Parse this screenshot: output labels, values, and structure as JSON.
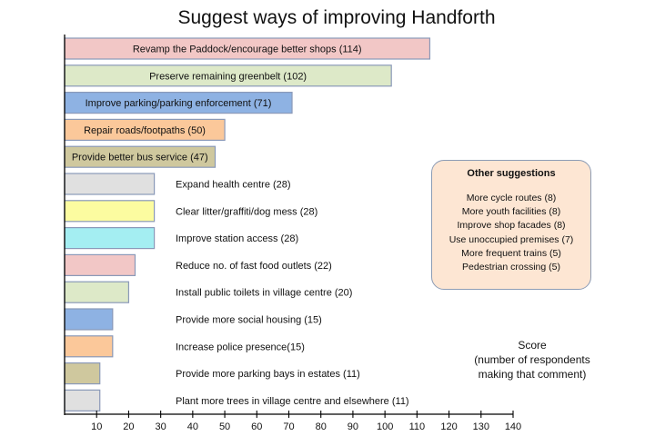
{
  "chart_data": {
    "type": "bar",
    "orientation": "horizontal",
    "title": "Suggest ways of improving Handforth",
    "xlabel": "Score\n(number of respondents\nmaking that comment)",
    "xlim": [
      0,
      140
    ],
    "xticks": [
      10,
      20,
      30,
      40,
      50,
      60,
      70,
      80,
      90,
      100,
      110,
      120,
      130,
      140
    ],
    "grid": false,
    "categories": [
      "Revamp the Paddock/encourage better shops (114)",
      "Preserve remaining greenbelt (102)",
      "Improve parking/parking enforcement (71)",
      "Repair roads/footpaths (50)",
      "Provide better bus service (47)",
      "Expand health centre (28)",
      "Clear litter/graffiti/dog mess (28)",
      "Improve station access (28)",
      "Reduce no. of fast food outlets (22)",
      "Install public toilets in village centre (20)",
      "Provide more social housing (15)",
      "Increase police presence(15)",
      "Provide more parking bays in estates (11)",
      "Plant more trees in village centre and elsewhere (11)"
    ],
    "values": [
      114,
      102,
      71,
      50,
      47,
      28,
      28,
      28,
      22,
      20,
      15,
      15,
      11,
      11
    ],
    "colors": [
      "#f2c7c6",
      "#dde9c8",
      "#8eb2e3",
      "#fbc89a",
      "#cfc89e",
      "#e0e0e0",
      "#fcfca0",
      "#a4eef2",
      "#f2c7c6",
      "#dde9c8",
      "#8eb2e3",
      "#fbc89a",
      "#cfc89e",
      "#e0e0e0"
    ],
    "label_inside": [
      true,
      true,
      true,
      true,
      true,
      false,
      false,
      false,
      false,
      false,
      false,
      false,
      false,
      false
    ]
  },
  "other_suggestions": {
    "title": "Other suggestions",
    "items": [
      "More cycle routes (8)",
      "More youth facilities (8)",
      "Improve shop facades (8)",
      "Use unoccupied premises (7)",
      "More frequent trains (5)",
      "Pedestrian crossing (5)"
    ],
    "background": "#fde6d3",
    "border": "#8c9cb5"
  }
}
